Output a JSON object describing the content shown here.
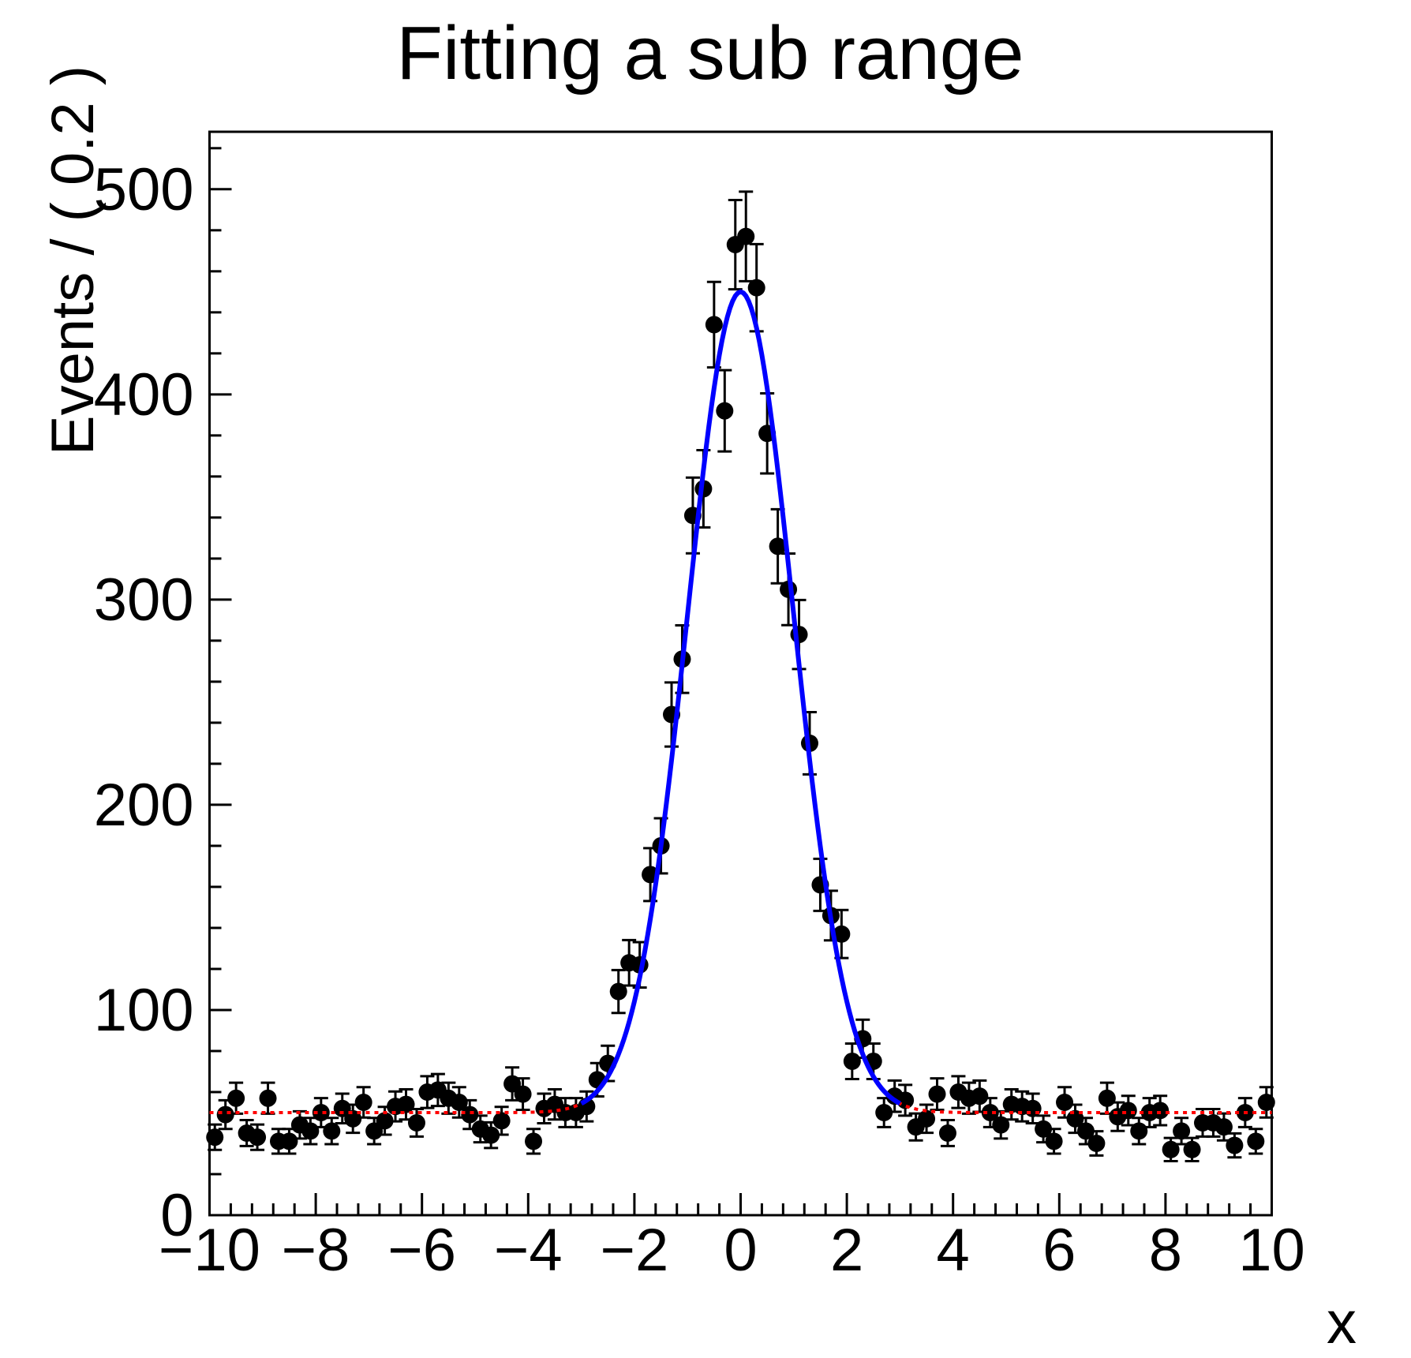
{
  "title": "Fitting a sub range",
  "colors": {
    "background": "#ffffff",
    "frame": "#000000",
    "marker": "#000000",
    "error_bar": "#000000",
    "fit_subrange": "#0000ff",
    "fit_fullrange": "#ff0000"
  },
  "x_axis": {
    "label": "x",
    "range": [
      -10,
      10
    ],
    "tick_values": [
      -10,
      -8,
      -6,
      -4,
      -2,
      0,
      2,
      4,
      6,
      8,
      10
    ],
    "tick_labels": [
      "−10",
      "−8",
      "−6",
      "−4",
      "−2",
      "0",
      "2",
      "4",
      "6",
      "8",
      "10"
    ],
    "minor_step": 0.4
  },
  "y_axis": {
    "label": "Events / ( 0.2 )",
    "range": [
      0,
      528
    ],
    "tick_values": [
      0,
      100,
      200,
      300,
      400,
      500
    ],
    "tick_labels": [
      "0",
      "100",
      "200",
      "300",
      "400",
      "500"
    ],
    "minor_step": 20
  },
  "chart_data": {
    "type": "scatter",
    "title": "Fitting a sub range",
    "xlabel": "x",
    "ylabel": "Events / ( 0.2 )",
    "xlim": [
      -10,
      10
    ],
    "ylim": [
      0,
      528
    ],
    "bin_width": 0.2,
    "error_model": "sqrt(y)",
    "x": [
      -9.9,
      -9.7,
      -9.5,
      -9.3,
      -9.1,
      -8.9,
      -8.7,
      -8.5,
      -8.3,
      -8.1,
      -7.9,
      -7.7,
      -7.5,
      -7.3,
      -7.1,
      -6.9,
      -6.7,
      -6.5,
      -6.3,
      -6.1,
      -5.9,
      -5.7,
      -5.5,
      -5.3,
      -5.1,
      -4.9,
      -4.7,
      -4.5,
      -4.3,
      -4.1,
      -3.9,
      -3.7,
      -3.5,
      -3.3,
      -3.1,
      -2.9,
      -2.7,
      -2.5,
      -2.3,
      -2.1,
      -1.9,
      -1.7,
      -1.5,
      -1.3,
      -1.1,
      -0.9,
      -0.7,
      -0.5,
      -0.3,
      -0.1,
      0.1,
      0.3,
      0.5,
      0.7,
      0.9,
      1.1,
      1.3,
      1.5,
      1.7,
      1.9,
      2.1,
      2.3,
      2.5,
      2.7,
      2.9,
      3.1,
      3.3,
      3.5,
      3.7,
      3.9,
      4.1,
      4.3,
      4.5,
      4.7,
      4.9,
      5.1,
      5.3,
      5.5,
      5.7,
      5.9,
      6.1,
      6.3,
      6.5,
      6.7,
      6.9,
      7.1,
      7.3,
      7.5,
      7.7,
      7.9,
      8.1,
      8.3,
      8.5,
      8.7,
      8.9,
      9.1,
      9.3,
      9.5,
      9.7,
      9.9
    ],
    "y": [
      38,
      49,
      57,
      40,
      38,
      57,
      36,
      36,
      44,
      41,
      50,
      41,
      52,
      47,
      55,
      41,
      46,
      53,
      54,
      45,
      60,
      61,
      57,
      55,
      49,
      42,
      39,
      46,
      64,
      59,
      36,
      52,
      54,
      50,
      50,
      53,
      66,
      74,
      109,
      123,
      122,
      166,
      180,
      244,
      271,
      341,
      354,
      434,
      392,
      473,
      477,
      452,
      381,
      326,
      305,
      283,
      230,
      161,
      146,
      137,
      75,
      86,
      75,
      50,
      58,
      56,
      43,
      47,
      59,
      40,
      60,
      57,
      58,
      50,
      44,
      54,
      53,
      52,
      42,
      36,
      55,
      47,
      41,
      35,
      57,
      48,
      51,
      41,
      50,
      51,
      32,
      41,
      32,
      45,
      45,
      43,
      34,
      50,
      36,
      55
    ],
    "series": [
      {
        "name": "fit-subrange",
        "shape": "gaussian_plus_constant",
        "baseline": 50,
        "amplitude": 400,
        "mean": 0,
        "sigma": 1.0,
        "x_range": [
          -3,
          3
        ],
        "color": "#0000ff",
        "line_style": "solid"
      },
      {
        "name": "fit-fullrange-extrapolated",
        "shape": "gaussian_plus_constant",
        "baseline": 50,
        "amplitude": 400,
        "mean": 0,
        "sigma": 1.0,
        "x_range": [
          -10,
          10
        ],
        "color": "#ff0000",
        "line_style": "dotted"
      }
    ]
  }
}
